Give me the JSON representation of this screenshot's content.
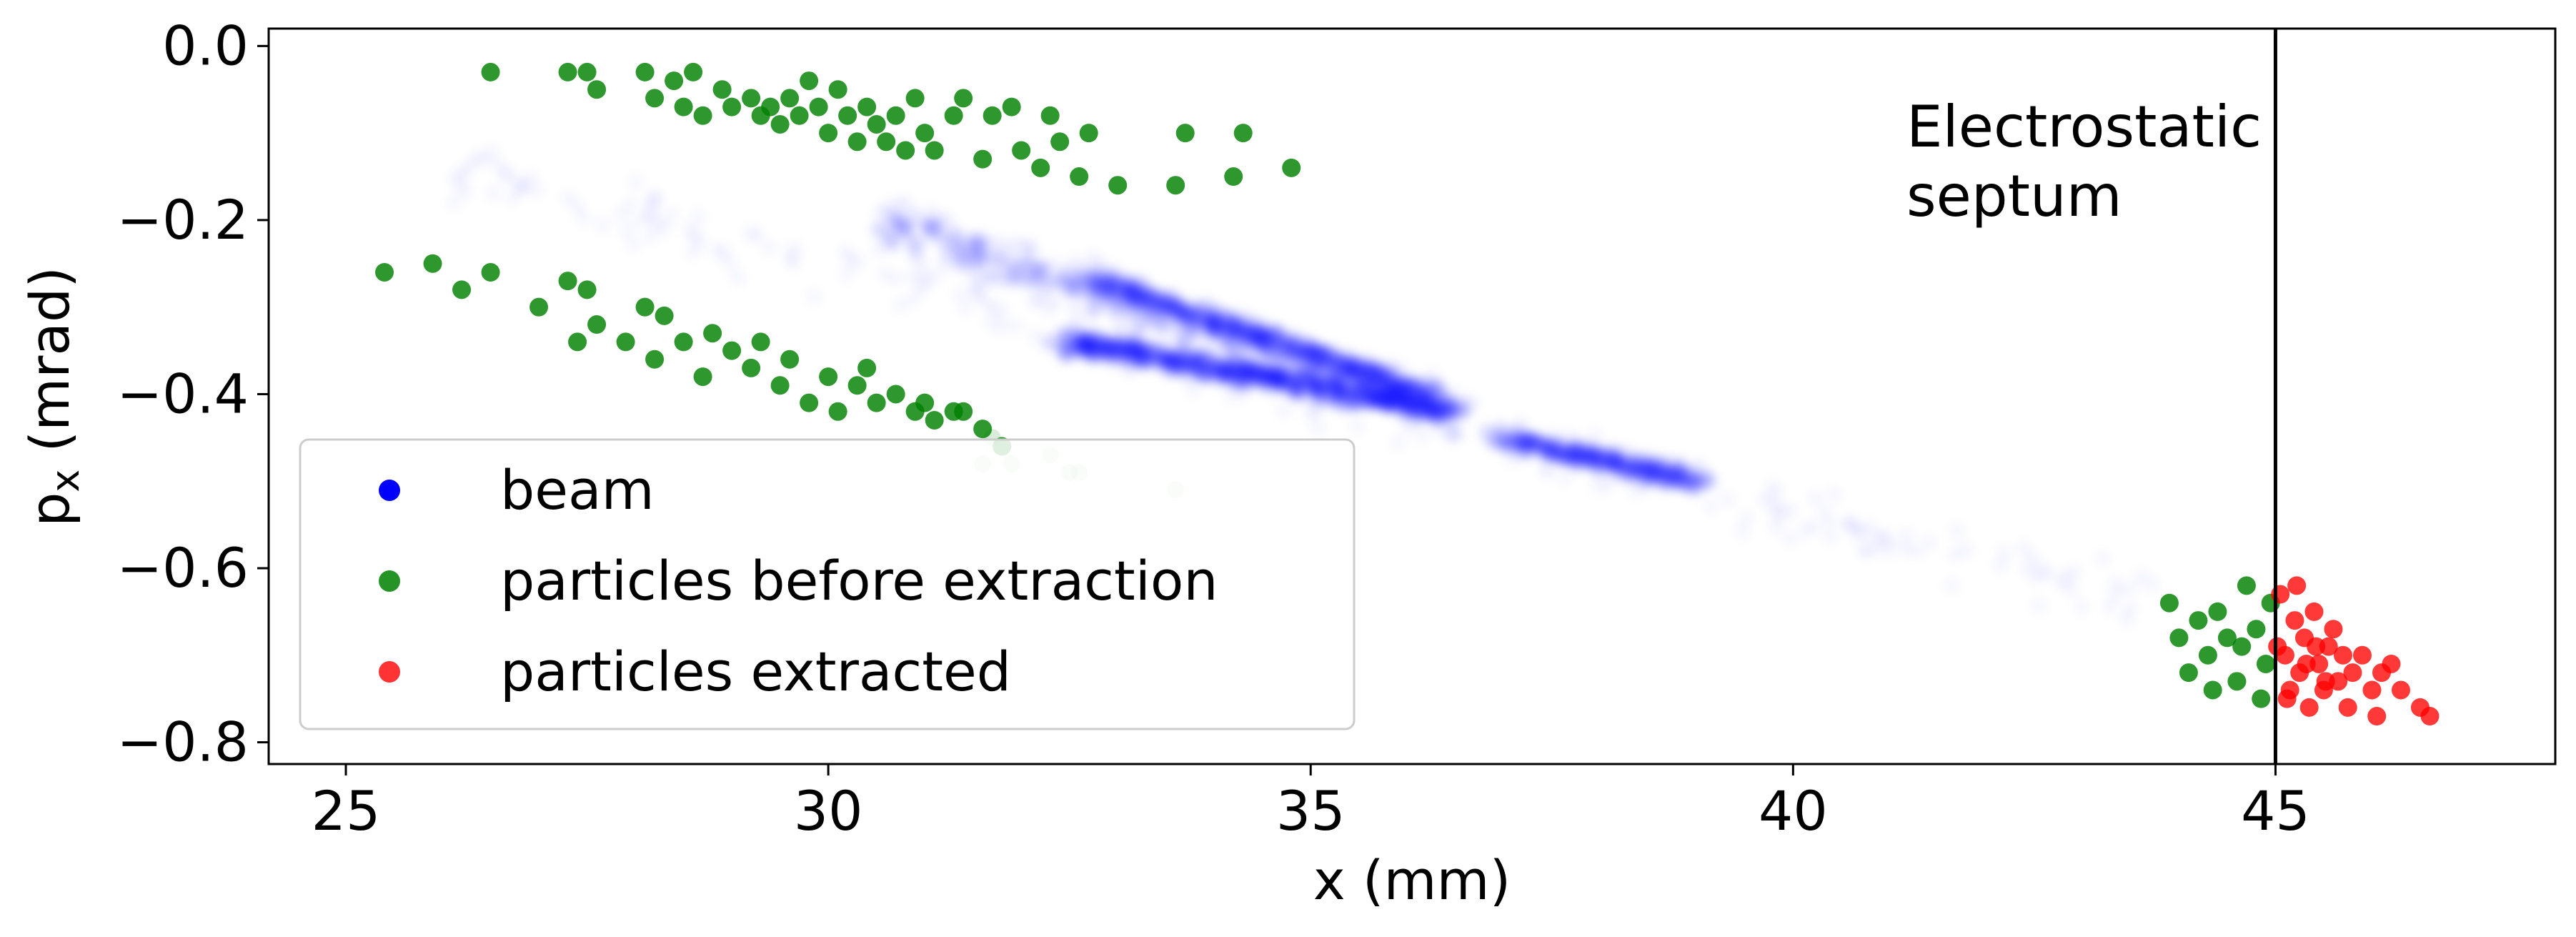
{
  "chart_data": {
    "type": "scatter",
    "xlabel": "x (mm)",
    "ylabel_main": "p",
    "ylabel_sub": "x",
    "ylabel_tail": " (mrad)",
    "xlim": [
      24.2,
      47.9
    ],
    "ylim": [
      -0.825,
      0.02
    ],
    "xticks": [
      25,
      30,
      35,
      40,
      45
    ],
    "xtick_labels": [
      "25",
      "30",
      "35",
      "40",
      "45"
    ],
    "yticks": [
      0.0,
      -0.2,
      -0.4,
      -0.6,
      -0.8
    ],
    "ytick_labels": [
      "0.0",
      "−0.2",
      "−0.4",
      "−0.6",
      "−0.8"
    ],
    "grid": false,
    "legend_position": "lower-left",
    "septum": {
      "x": 45,
      "label_lines": [
        "Electrostatic",
        "septum"
      ]
    },
    "series": [
      {
        "name": "beam",
        "color": "#0000ff",
        "style": "dense translucent cloud",
        "core_segments": [
          {
            "from": [
              26.0,
              -0.14
            ],
            "to": [
              43.7,
              -0.64
            ],
            "width": 0.07,
            "density": 0.25
          },
          {
            "from": [
              30.5,
              -0.2
            ],
            "to": [
              36.5,
              -0.42
            ],
            "width": 0.05,
            "density": 0.6
          },
          {
            "from": [
              32.5,
              -0.34
            ],
            "to": [
              36.5,
              -0.42
            ],
            "width": 0.025,
            "density": 1.0
          },
          {
            "from": [
              32.8,
              -0.27
            ],
            "to": [
              36.2,
              -0.4
            ],
            "width": 0.02,
            "density": 0.8
          },
          {
            "from": [
              37.0,
              -0.45
            ],
            "to": [
              39.0,
              -0.5
            ],
            "width": 0.02,
            "density": 0.6
          }
        ]
      },
      {
        "name": "particles before extraction",
        "color": "#008000",
        "points": [
          [
            26.5,
            -0.03
          ],
          [
            27.3,
            -0.03
          ],
          [
            27.5,
            -0.03
          ],
          [
            27.6,
            -0.05
          ],
          [
            28.1,
            -0.03
          ],
          [
            28.2,
            -0.06
          ],
          [
            28.4,
            -0.04
          ],
          [
            28.5,
            -0.07
          ],
          [
            28.6,
            -0.03
          ],
          [
            28.7,
            -0.08
          ],
          [
            28.9,
            -0.05
          ],
          [
            29.0,
            -0.07
          ],
          [
            29.2,
            -0.06
          ],
          [
            29.3,
            -0.08
          ],
          [
            29.4,
            -0.07
          ],
          [
            29.5,
            -0.09
          ],
          [
            29.6,
            -0.06
          ],
          [
            29.7,
            -0.08
          ],
          [
            29.8,
            -0.04
          ],
          [
            29.9,
            -0.07
          ],
          [
            30.0,
            -0.1
          ],
          [
            30.1,
            -0.05
          ],
          [
            30.2,
            -0.08
          ],
          [
            30.3,
            -0.11
          ],
          [
            30.4,
            -0.07
          ],
          [
            30.5,
            -0.09
          ],
          [
            30.6,
            -0.11
          ],
          [
            30.7,
            -0.08
          ],
          [
            30.8,
            -0.12
          ],
          [
            30.9,
            -0.06
          ],
          [
            31.0,
            -0.1
          ],
          [
            31.1,
            -0.12
          ],
          [
            31.3,
            -0.08
          ],
          [
            31.4,
            -0.06
          ],
          [
            31.6,
            -0.13
          ],
          [
            31.7,
            -0.08
          ],
          [
            31.9,
            -0.07
          ],
          [
            32.0,
            -0.12
          ],
          [
            32.2,
            -0.14
          ],
          [
            32.3,
            -0.08
          ],
          [
            32.4,
            -0.11
          ],
          [
            32.6,
            -0.15
          ],
          [
            32.7,
            -0.1
          ],
          [
            33.0,
            -0.16
          ],
          [
            33.6,
            -0.16
          ],
          [
            33.7,
            -0.1
          ],
          [
            34.2,
            -0.15
          ],
          [
            34.3,
            -0.1
          ],
          [
            34.8,
            -0.14
          ],
          [
            25.4,
            -0.26
          ],
          [
            25.9,
            -0.25
          ],
          [
            26.2,
            -0.28
          ],
          [
            26.5,
            -0.26
          ],
          [
            27.0,
            -0.3
          ],
          [
            27.3,
            -0.27
          ],
          [
            27.5,
            -0.28
          ],
          [
            27.6,
            -0.32
          ],
          [
            27.4,
            -0.34
          ],
          [
            27.9,
            -0.34
          ],
          [
            28.1,
            -0.3
          ],
          [
            28.2,
            -0.36
          ],
          [
            28.3,
            -0.31
          ],
          [
            28.5,
            -0.34
          ],
          [
            28.7,
            -0.38
          ],
          [
            28.8,
            -0.33
          ],
          [
            29.0,
            -0.35
          ],
          [
            29.2,
            -0.37
          ],
          [
            29.3,
            -0.34
          ],
          [
            29.5,
            -0.39
          ],
          [
            29.6,
            -0.36
          ],
          [
            29.8,
            -0.41
          ],
          [
            30.0,
            -0.38
          ],
          [
            30.1,
            -0.42
          ],
          [
            30.3,
            -0.39
          ],
          [
            30.4,
            -0.37
          ],
          [
            30.5,
            -0.41
          ],
          [
            30.7,
            -0.4
          ],
          [
            30.9,
            -0.42
          ],
          [
            31.0,
            -0.41
          ],
          [
            31.1,
            -0.43
          ],
          [
            31.3,
            -0.42
          ],
          [
            31.4,
            -0.42
          ],
          [
            31.6,
            -0.44
          ],
          [
            31.8,
            -0.46
          ],
          [
            43.9,
            -0.64
          ],
          [
            44.0,
            -0.68
          ],
          [
            44.1,
            -0.72
          ],
          [
            44.2,
            -0.66
          ],
          [
            44.3,
            -0.7
          ],
          [
            44.4,
            -0.65
          ],
          [
            44.5,
            -0.68
          ],
          [
            44.6,
            -0.73
          ],
          [
            44.7,
            -0.62
          ],
          [
            44.8,
            -0.67
          ],
          [
            44.9,
            -0.71
          ],
          [
            44.95,
            -0.64
          ],
          [
            44.85,
            -0.75
          ],
          [
            44.65,
            -0.69
          ],
          [
            44.35,
            -0.74
          ]
        ]
      },
      {
        "name": "particles extracted",
        "color": "#ff0000",
        "points": [
          [
            45.05,
            -0.63
          ],
          [
            45.1,
            -0.7
          ],
          [
            45.15,
            -0.74
          ],
          [
            45.2,
            -0.66
          ],
          [
            45.25,
            -0.72
          ],
          [
            45.3,
            -0.68
          ],
          [
            45.35,
            -0.76
          ],
          [
            45.4,
            -0.65
          ],
          [
            45.45,
            -0.71
          ],
          [
            45.5,
            -0.74
          ],
          [
            45.55,
            -0.69
          ],
          [
            45.6,
            -0.67
          ],
          [
            45.65,
            -0.73
          ],
          [
            45.7,
            -0.7
          ],
          [
            45.75,
            -0.76
          ],
          [
            45.8,
            -0.72
          ],
          [
            45.9,
            -0.7
          ],
          [
            46.0,
            -0.74
          ],
          [
            46.05,
            -0.77
          ],
          [
            46.1,
            -0.72
          ],
          [
            46.2,
            -0.71
          ],
          [
            46.3,
            -0.74
          ],
          [
            46.5,
            -0.76
          ],
          [
            46.6,
            -0.77
          ],
          [
            45.02,
            -0.69
          ],
          [
            45.12,
            -0.75
          ],
          [
            45.22,
            -0.62
          ],
          [
            45.32,
            -0.71
          ],
          [
            45.42,
            -0.69
          ],
          [
            45.52,
            -0.73
          ]
        ]
      }
    ],
    "ghost_points": [
      [
        31.6,
        -0.48
      ],
      [
        31.7,
        -0.45
      ],
      [
        31.9,
        -0.48
      ],
      [
        32.3,
        -0.47
      ],
      [
        32.5,
        -0.49
      ],
      [
        32.6,
        -0.49
      ],
      [
        33.6,
        -0.51
      ]
    ]
  }
}
